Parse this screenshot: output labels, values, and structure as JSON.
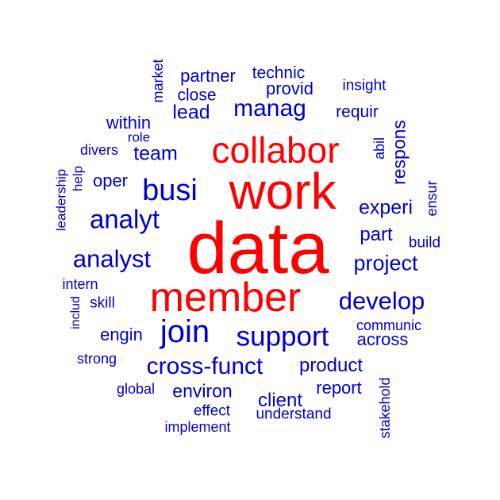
{
  "palette": {
    "high": "#ff0000",
    "low": "#0000cc"
  },
  "words": [
    {
      "text": "data",
      "color": "high"
    },
    {
      "text": "work",
      "color": "high"
    },
    {
      "text": "collabor",
      "color": "high"
    },
    {
      "text": "member",
      "color": "high"
    },
    {
      "text": "busi",
      "color": "low"
    },
    {
      "text": "analyt",
      "color": "low"
    },
    {
      "text": "analyst",
      "color": "low"
    },
    {
      "text": "join",
      "color": "low"
    },
    {
      "text": "support",
      "color": "low"
    },
    {
      "text": "cross-funct",
      "color": "low"
    },
    {
      "text": "develop",
      "color": "low"
    },
    {
      "text": "project",
      "color": "low"
    },
    {
      "text": "manag",
      "color": "low"
    },
    {
      "text": "team",
      "color": "low"
    },
    {
      "text": "lead",
      "color": "low"
    },
    {
      "text": "partner",
      "color": "low"
    },
    {
      "text": "technic",
      "color": "low"
    },
    {
      "text": "provid",
      "color": "low"
    },
    {
      "text": "close",
      "color": "low"
    },
    {
      "text": "insight",
      "color": "low"
    },
    {
      "text": "requir",
      "color": "low"
    },
    {
      "text": "within",
      "color": "low"
    },
    {
      "text": "role",
      "color": "low"
    },
    {
      "text": "divers",
      "color": "low"
    },
    {
      "text": "oper",
      "color": "low"
    },
    {
      "text": "market",
      "color": "low"
    },
    {
      "text": "abil",
      "color": "low"
    },
    {
      "text": "respons",
      "color": "low"
    },
    {
      "text": "experi",
      "color": "low"
    },
    {
      "text": "ensur",
      "color": "low"
    },
    {
      "text": "part",
      "color": "low"
    },
    {
      "text": "build",
      "color": "low"
    },
    {
      "text": "leadership",
      "color": "low"
    },
    {
      "text": "help",
      "color": "low"
    },
    {
      "text": "intern",
      "color": "low"
    },
    {
      "text": "includ",
      "color": "low"
    },
    {
      "text": "skill",
      "color": "low"
    },
    {
      "text": "engin",
      "color": "low"
    },
    {
      "text": "communic",
      "color": "low"
    },
    {
      "text": "across",
      "color": "low"
    },
    {
      "text": "strong",
      "color": "low"
    },
    {
      "text": "product",
      "color": "low"
    },
    {
      "text": "global",
      "color": "low"
    },
    {
      "text": "environ",
      "color": "low"
    },
    {
      "text": "client",
      "color": "low"
    },
    {
      "text": "report",
      "color": "low"
    },
    {
      "text": "effect",
      "color": "low"
    },
    {
      "text": "understand",
      "color": "low"
    },
    {
      "text": "implement",
      "color": "low"
    },
    {
      "text": "stakehold",
      "color": "low"
    }
  ]
}
